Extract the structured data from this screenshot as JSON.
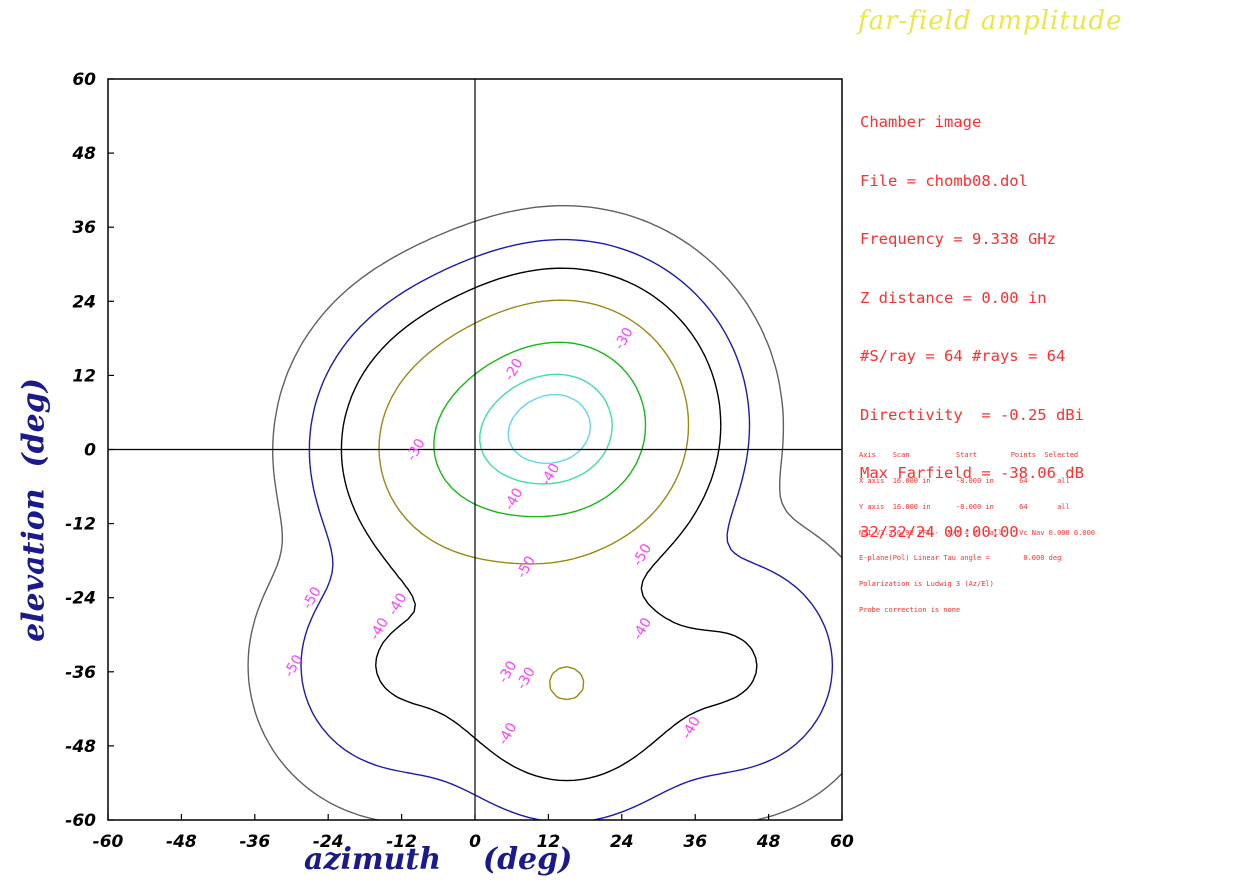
{
  "title": "far-field    amplitude",
  "info_lines": [
    "Chamber image",
    "File = chomb08.dol",
    "Frequency = 9.338 GHz",
    "Z distance = 0.00 in",
    "#S/ray = 64 #rays = 64",
    "Directivity  = -0.25 dBi",
    "Max Farfield = -38.06 dB",
    "32/32/24 00:00:00"
  ],
  "scan_info_lines": [
    "Axis    Scan           Start        Points  Selected",
    "X axis  16.000 in      -8.000 in      64       all",
    "Y axis  16.000 in      -8.000 in      64       all",
    "NSI V3.3 6/92 FFT -  X/Y = all all    Vc Nav 0.000 0.000",
    "E-plane(Pol) Linear Tau angle =        0.000 deg",
    "Polarization is Ludwig 3 (Az/El)",
    "Probe correction is none"
  ],
  "colors": {
    "title": "#e8e84a",
    "info": "#ff3030",
    "axis_title": "#1a1a8c",
    "contour_labels": "#ff44ff",
    "level_-50": "#606060",
    "level_-40": "#1a1ab4",
    "level_-30": "#000000",
    "level_-20": "#9a8a10",
    "level_-10": "#18b818",
    "level_-5": "#40e0a0",
    "level_-3": "#60d8f0"
  },
  "chart_data": {
    "type": "contour",
    "title": "far-field    amplitude",
    "xlabel": "azimuth    (deg)",
    "ylabel": "elevation  (deg)",
    "xlim": [
      -60,
      60
    ],
    "ylim": [
      -60,
      60
    ],
    "x_ticks": [
      -60,
      -48,
      -36,
      -24,
      -12,
      0,
      12,
      24,
      36,
      48,
      60
    ],
    "y_ticks": [
      -60,
      -48,
      -36,
      -24,
      -12,
      0,
      12,
      24,
      36,
      48,
      60
    ],
    "crosshair": [
      0,
      0
    ],
    "grid": false,
    "contour_levels_db": [
      -50,
      -40,
      -30,
      -20,
      -10,
      -5,
      -3
    ],
    "lobes": [
      {
        "x": 15,
        "y": 4,
        "peak_db": -3
      },
      {
        "x": 0,
        "y": 0,
        "peak_db": -10
      },
      {
        "x": 15,
        "y": -38,
        "peak_db": -20
      },
      {
        "x": -12,
        "y": -35,
        "peak_db": -30
      },
      {
        "x": 42,
        "y": -35,
        "peak_db": -30
      }
    ],
    "contour_labels": [
      {
        "text": "-30",
        "x": 24,
        "y": 16
      },
      {
        "text": "-20",
        "x": 6,
        "y": 11
      },
      {
        "text": "-30",
        "x": -10,
        "y": -2
      },
      {
        "text": "-40",
        "x": 12,
        "y": -6
      },
      {
        "text": "-40",
        "x": 6,
        "y": -10
      },
      {
        "text": "-50",
        "x": 8,
        "y": -21
      },
      {
        "text": "-50",
        "x": 27,
        "y": -19
      },
      {
        "text": "-50",
        "x": -27,
        "y": -26
      },
      {
        "text": "-40",
        "x": -13,
        "y": -27
      },
      {
        "text": "-40",
        "x": -16,
        "y": -31
      },
      {
        "text": "-50",
        "x": -30,
        "y": -37
      },
      {
        "text": "-30",
        "x": 5,
        "y": -38
      },
      {
        "text": "-30",
        "x": 8,
        "y": -39
      },
      {
        "text": "-40",
        "x": 27,
        "y": -31
      },
      {
        "text": "-40",
        "x": 35,
        "y": -47
      },
      {
        "text": "-40",
        "x": 5,
        "y": -48
      }
    ]
  }
}
